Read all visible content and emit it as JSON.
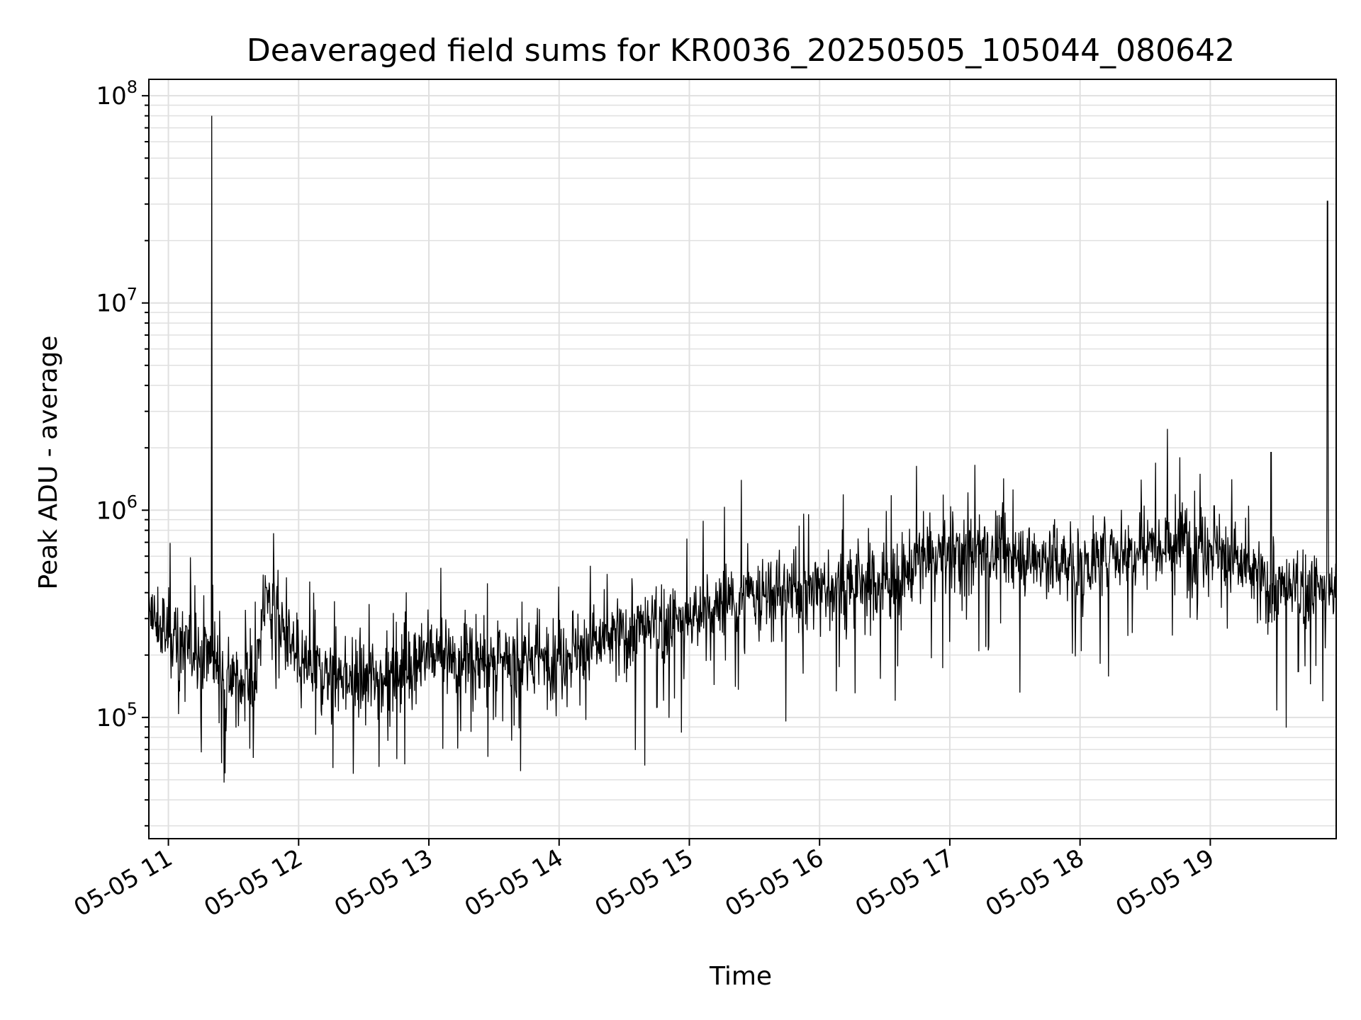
{
  "chart_data": {
    "type": "line",
    "title": "Deaveraged field sums for KR0036_20250505_105044_080642",
    "xlabel": "Time",
    "ylabel": "Peak ADU - average",
    "yscale": "log",
    "grid": true,
    "legend": "none",
    "line_color": "#000000",
    "grid_color": "#e0e0e0",
    "x_range": [
      "2025-05-05 10:51",
      "2025-05-05 19:58"
    ],
    "ylim": [
      26000,
      120000000
    ],
    "x_tick_labels": [
      "05-05 11",
      "05-05 12",
      "05-05 13",
      "05-05 14",
      "05-05 15",
      "05-05 16",
      "05-05 17",
      "05-05 18",
      "05-05 19"
    ],
    "x_tick_times": [
      "2025-05-05 11:00",
      "2025-05-05 12:00",
      "2025-05-05 13:00",
      "2025-05-05 14:00",
      "2025-05-05 15:00",
      "2025-05-05 16:00",
      "2025-05-05 17:00",
      "2025-05-05 18:00",
      "2025-05-05 19:00"
    ],
    "y_tick_labels": [
      {
        "base": "10",
        "exp": "5"
      },
      {
        "base": "10",
        "exp": "6"
      },
      {
        "base": "10",
        "exp": "7"
      },
      {
        "base": "10",
        "exp": "8"
      }
    ],
    "y_tick_values": [
      100000,
      1000000,
      10000000,
      100000000
    ],
    "series": [
      {
        "x": [
          "2025-05-05 10:51",
          "2025-05-05 11:00",
          "2025-05-05 11:10",
          "2025-05-05 11:20",
          "2025-05-05 11:30",
          "2025-05-05 11:40",
          "2025-05-05 11:45",
          "2025-05-05 12:00",
          "2025-05-05 12:30",
          "2025-05-05 13:00",
          "2025-05-05 13:30",
          "2025-05-05 14:00",
          "2025-05-05 14:30",
          "2025-05-05 15:00",
          "2025-05-05 15:30",
          "2025-05-05 16:00",
          "2025-05-05 16:30",
          "2025-05-05 17:00",
          "2025-05-05 17:30",
          "2025-05-05 18:00",
          "2025-05-05 18:30",
          "2025-05-05 19:00",
          "2025-05-05 19:30",
          "2025-05-05 19:58"
        ],
        "y": [
          300000,
          250000,
          220000,
          200000,
          150000,
          150000,
          400000,
          180000,
          150000,
          200000,
          180000,
          200000,
          250000,
          300000,
          380000,
          420000,
          450000,
          650000,
          600000,
          550000,
          700000,
          700000,
          400000,
          420000
        ]
      }
    ],
    "spikes": [
      {
        "x": "2025-05-05 11:20",
        "y": 80000000
      },
      {
        "x": "2025-05-05 19:54",
        "y": 31000000
      },
      {
        "x": "2025-05-05 19:28",
        "y": 1900000
      },
      {
        "x": "2025-05-05 18:46",
        "y": 1800000
      },
      {
        "x": "2025-05-05 15:24",
        "y": 1400000
      }
    ]
  }
}
